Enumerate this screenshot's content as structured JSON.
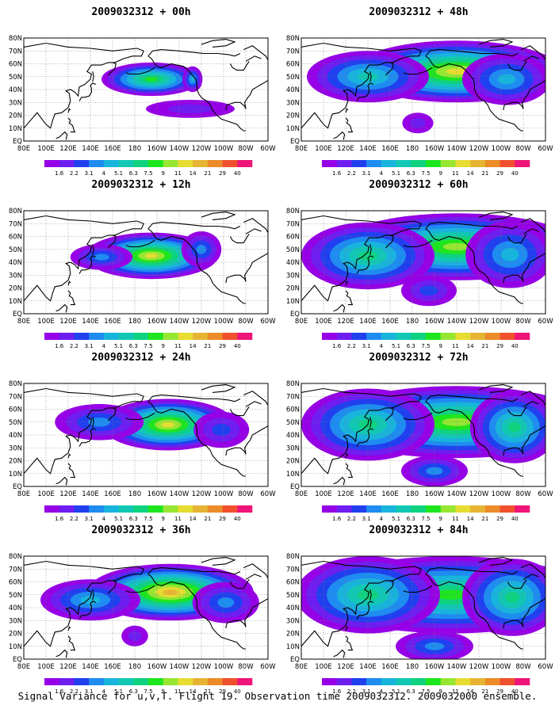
{
  "caption": "Signal Variance for u,v,T. Flight 19. Observation time 2009032312. 2009032000 ensemble.",
  "lon_labels": [
    "80E",
    "100E",
    "120E",
    "140E",
    "160E",
    "180",
    "160W",
    "140W",
    "120W",
    "100W",
    "80W",
    "60W"
  ],
  "lat_labels": [
    "EQ",
    "10N",
    "20N",
    "30N",
    "40N",
    "50N",
    "60N",
    "70N",
    "80N"
  ],
  "colorbar": {
    "levels": [
      "1.6",
      "2.2",
      "3.1",
      "4",
      "5.1",
      "6.3",
      "7.5",
      "9",
      "11",
      "14",
      "21",
      "29",
      "40"
    ],
    "colors": [
      "#9600e6",
      "#6e1ef0",
      "#2040f0",
      "#1e8cf0",
      "#18b4dc",
      "#12c8b4",
      "#0fd280",
      "#1ee61e",
      "#96e632",
      "#e6dc32",
      "#e6b432",
      "#eb8c28",
      "#f0502d",
      "#ee1478"
    ]
  },
  "panels": [
    {
      "title": "2009032312 + 00h",
      "lead_hours": 0
    },
    {
      "title": "2009032312 + 48h",
      "lead_hours": 48
    },
    {
      "title": "2009032312 + 12h",
      "lead_hours": 12
    },
    {
      "title": "2009032312 + 60h",
      "lead_hours": 60
    },
    {
      "title": "2009032312 + 24h",
      "lead_hours": 24
    },
    {
      "title": "2009032312 + 72h",
      "lead_hours": 72
    },
    {
      "title": "2009032312 + 36h",
      "lead_hours": 36
    },
    {
      "title": "2009032312 + 84h",
      "lead_hours": 84
    }
  ]
}
